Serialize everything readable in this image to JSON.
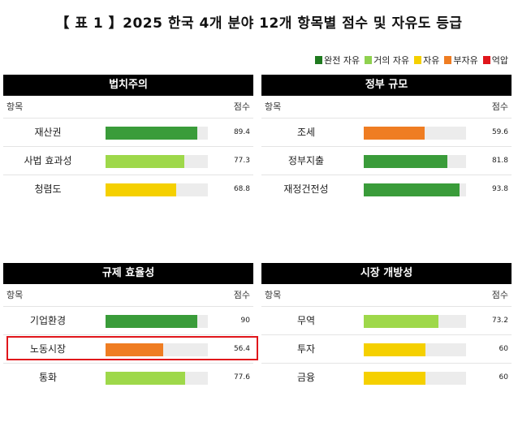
{
  "title": "【 표 1 】2025 한국 4개 분야 12개 항목별 점수 및 자유도 등급",
  "legend": [
    {
      "label": "완전 자유",
      "color": "#1f7a1f"
    },
    {
      "label": "거의 자유",
      "color": "#8fd14f"
    },
    {
      "label": "자유",
      "color": "#f5d000"
    },
    {
      "label": "부자유",
      "color": "#ef7d22"
    },
    {
      "label": "억압",
      "color": "#e0161b"
    }
  ],
  "chart_data": [
    {
      "type": "bar",
      "title": "법치주의",
      "xlabel": "항목",
      "ylabel": "점수",
      "ylim": [
        0,
        100
      ],
      "categories": [
        "재산권",
        "사법 효과성",
        "청렴도"
      ],
      "values": [
        89.4,
        77.3,
        68.8
      ],
      "value_labels": [
        "89.4",
        "77.3",
        "68.8"
      ],
      "colors": [
        "#3a9c3a",
        "#9ed84a",
        "#f5d000"
      ]
    },
    {
      "type": "bar",
      "title": "정부 규모",
      "xlabel": "항목",
      "ylabel": "점수",
      "ylim": [
        0,
        100
      ],
      "categories": [
        "조세",
        "정부지출",
        "재정건전성"
      ],
      "values": [
        59.6,
        81.8,
        93.8
      ],
      "value_labels": [
        "59.6",
        "81.8",
        "93.8"
      ],
      "colors": [
        "#ef7d22",
        "#3a9c3a",
        "#3a9c3a"
      ]
    },
    {
      "type": "bar",
      "title": "규제 효율성",
      "xlabel": "항목",
      "ylabel": "점수",
      "ylim": [
        0,
        100
      ],
      "categories": [
        "기업환경",
        "노동시장",
        "통화"
      ],
      "values": [
        90,
        56.4,
        77.6
      ],
      "value_labels": [
        "90",
        "56.4",
        "77.6"
      ],
      "colors": [
        "#3a9c3a",
        "#ef7d22",
        "#9ed84a"
      ],
      "highlighted_category": "노동시장"
    },
    {
      "type": "bar",
      "title": "시장 개방성",
      "xlabel": "항목",
      "ylabel": "점수",
      "ylim": [
        0,
        100
      ],
      "categories": [
        "무역",
        "투자",
        "금융"
      ],
      "values": [
        73.2,
        60,
        60
      ],
      "value_labels": [
        "73.2",
        "60",
        "60"
      ],
      "colors": [
        "#9ed84a",
        "#f5d000",
        "#f5d000"
      ]
    }
  ]
}
